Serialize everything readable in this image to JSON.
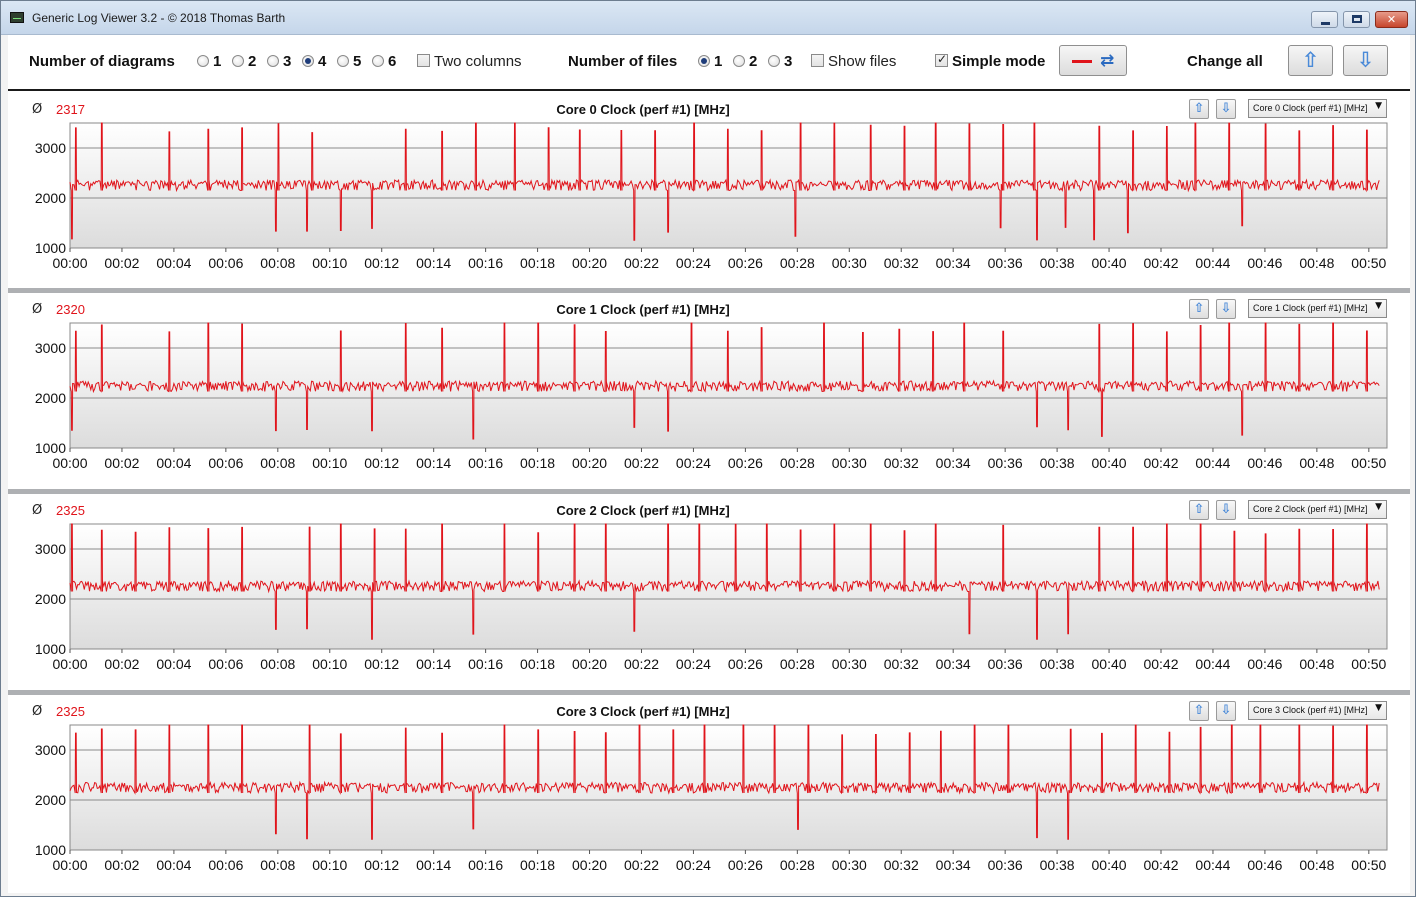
{
  "window": {
    "title": "Generic Log Viewer 3.2 - © 2018 Thomas Barth"
  },
  "toolbar": {
    "num_diagrams_label": "Number of diagrams",
    "diagram_options": [
      "1",
      "2",
      "3",
      "4",
      "5",
      "6"
    ],
    "diagram_selected": "4",
    "two_columns_label": "Two columns",
    "two_columns_checked": false,
    "num_files_label": "Number of files",
    "file_options": [
      "1",
      "2",
      "3"
    ],
    "file_selected": "1",
    "show_files_label": "Show files",
    "show_files_checked": false,
    "simple_mode_label": "Simple mode",
    "simple_mode_checked": true,
    "change_all_label": "Change all",
    "line_color": "#e0141b"
  },
  "icons": {
    "up": "arrow-up-icon",
    "down": "arrow-down-icon",
    "refresh": "refresh-icon"
  },
  "colors": {
    "series": "#e0141b",
    "plot_bg_top": "#ffffff",
    "plot_bg_bottom": "#dcdcdc"
  },
  "panels": [
    {
      "avg_symbol": "Ø",
      "avg_value": "2317",
      "title": "Core 0 Clock (perf #1) [MHz]",
      "select_value": "Core 0 Clock (perf #1) [MHz]",
      "seed": 11
    },
    {
      "avg_symbol": "Ø",
      "avg_value": "2320",
      "title": "Core 1 Clock (perf #1) [MHz]",
      "select_value": "Core 1 Clock (perf #1) [MHz]",
      "seed": 23
    },
    {
      "avg_symbol": "Ø",
      "avg_value": "2325",
      "title": "Core 2 Clock (perf #1) [MHz]",
      "select_value": "Core 2 Clock (perf #1) [MHz]",
      "seed": 37
    },
    {
      "avg_symbol": "Ø",
      "avg_value": "2325",
      "title": "Core 3 Clock (perf #1) [MHz]",
      "select_value": "Core 3 Clock (perf #1) [MHz]",
      "seed": 53
    }
  ],
  "chart_data": [
    {
      "type": "line",
      "title": "Core 0 Clock (perf #1) [MHz]",
      "ylim": [
        1000,
        3500
      ],
      "yticks": [
        1000,
        2000,
        3000
      ],
      "x_ticks": [
        "00:00",
        "00:02",
        "00:04",
        "00:06",
        "00:08",
        "00:10",
        "00:12",
        "00:14",
        "00:16",
        "00:18",
        "00:20",
        "00:22",
        "00:24",
        "00:26",
        "00:28",
        "00:30",
        "00:32",
        "00:34",
        "00:36",
        "00:38",
        "00:40",
        "00:42",
        "00:44",
        "00:46",
        "00:48",
        "00:50"
      ],
      "series": [
        {
          "baseline": 2300,
          "spikes_high": [
            0.2,
            1.2,
            3.8,
            5.3,
            6.6,
            8.0,
            9.3,
            10.4,
            12.9,
            14.3,
            15.6,
            17.1,
            18.4,
            19.6,
            21.2,
            22.5,
            24.0,
            25.3,
            26.6,
            28.1,
            29.4,
            30.8,
            32.1,
            33.3,
            34.6,
            35.9,
            37.1,
            39.6,
            40.9,
            42.2,
            43.3,
            44.6,
            46.0,
            47.3,
            48.6,
            49.9
          ],
          "spikes_low": [
            0.05,
            7.9,
            9.1,
            10.4,
            11.6,
            21.7,
            23.0,
            27.9,
            35.8,
            37.2,
            38.3,
            39.4,
            40.7,
            45.1
          ]
        }
      ]
    },
    {
      "type": "line",
      "title": "Core 1 Clock (perf #1) [MHz]",
      "ylim": [
        1000,
        3500
      ],
      "yticks": [
        1000,
        2000,
        3000
      ],
      "x_ticks": [
        "00:00",
        "00:02",
        "00:04",
        "00:06",
        "00:08",
        "00:10",
        "00:12",
        "00:14",
        "00:16",
        "00:18",
        "00:20",
        "00:22",
        "00:24",
        "00:26",
        "00:28",
        "00:30",
        "00:32",
        "00:34",
        "00:36",
        "00:38",
        "00:40",
        "00:42",
        "00:44",
        "00:46",
        "00:48",
        "00:50"
      ],
      "series": [
        {
          "baseline": 2280,
          "spikes_high": [
            0.2,
            1.2,
            3.8,
            5.3,
            6.6,
            7.9,
            10.4,
            12.9,
            14.3,
            16.7,
            18.0,
            19.4,
            20.6,
            23.9,
            25.3,
            26.6,
            29.0,
            30.5,
            31.9,
            33.2,
            34.4,
            35.9,
            37.2,
            38.4,
            39.6,
            40.9,
            42.2,
            43.5,
            44.6,
            46.0,
            47.3,
            48.6,
            49.9
          ],
          "spikes_low": [
            0.05,
            7.9,
            9.1,
            11.6,
            15.5,
            21.7,
            23.0,
            37.2,
            38.4,
            39.7,
            45.1
          ]
        }
      ]
    },
    {
      "type": "line",
      "title": "Core 2 Clock (perf #1) [MHz]",
      "ylim": [
        1000,
        3500
      ],
      "yticks": [
        1000,
        2000,
        3000
      ],
      "x_ticks": [
        "00:00",
        "00:02",
        "00:04",
        "00:06",
        "00:08",
        "00:10",
        "00:12",
        "00:14",
        "00:16",
        "00:18",
        "00:20",
        "00:22",
        "00:24",
        "00:26",
        "00:28",
        "00:30",
        "00:32",
        "00:34",
        "00:36",
        "00:38",
        "00:40",
        "00:42",
        "00:44",
        "00:46",
        "00:48",
        "00:50"
      ],
      "series": [
        {
          "baseline": 2300,
          "spikes_high": [
            0.05,
            1.2,
            2.5,
            3.8,
            5.3,
            6.6,
            7.9,
            9.2,
            10.4,
            11.7,
            12.9,
            14.3,
            16.7,
            18.0,
            19.4,
            20.6,
            23.0,
            24.2,
            25.6,
            26.8,
            28.1,
            29.4,
            30.8,
            32.1,
            33.3,
            34.6,
            35.9,
            37.2,
            38.4,
            39.6,
            40.9,
            42.2,
            43.5,
            44.8,
            46.0,
            47.3,
            48.6,
            49.9
          ],
          "spikes_low": [
            7.9,
            9.1,
            11.6,
            15.5,
            21.7,
            34.6,
            37.2,
            38.4
          ]
        }
      ]
    },
    {
      "type": "line",
      "title": "Core 3 Clock (perf #1) [MHz]",
      "ylim": [
        1000,
        3500
      ],
      "yticks": [
        1000,
        2000,
        3000
      ],
      "x_ticks": [
        "00:00",
        "00:02",
        "00:04",
        "00:06",
        "00:08",
        "00:10",
        "00:12",
        "00:14",
        "00:16",
        "00:18",
        "00:20",
        "00:22",
        "00:24",
        "00:26",
        "00:28",
        "00:30",
        "00:32",
        "00:34",
        "00:36",
        "00:38",
        "00:40",
        "00:42",
        "00:44",
        "00:46",
        "00:48",
        "00:50"
      ],
      "series": [
        {
          "baseline": 2290,
          "spikes_high": [
            0.2,
            1.2,
            2.5,
            3.8,
            5.3,
            6.6,
            7.9,
            9.2,
            10.4,
            12.9,
            14.3,
            16.7,
            18.0,
            19.4,
            20.6,
            21.9,
            23.2,
            24.4,
            25.9,
            27.1,
            28.4,
            29.7,
            31.0,
            32.3,
            33.5,
            34.8,
            36.1,
            37.2,
            38.5,
            39.7,
            41.0,
            42.3,
            43.5,
            44.7,
            45.8,
            47.3,
            48.6,
            49.9
          ],
          "spikes_low": [
            7.9,
            9.1,
            11.6,
            15.5,
            28.0,
            37.2,
            38.4
          ]
        }
      ]
    }
  ]
}
